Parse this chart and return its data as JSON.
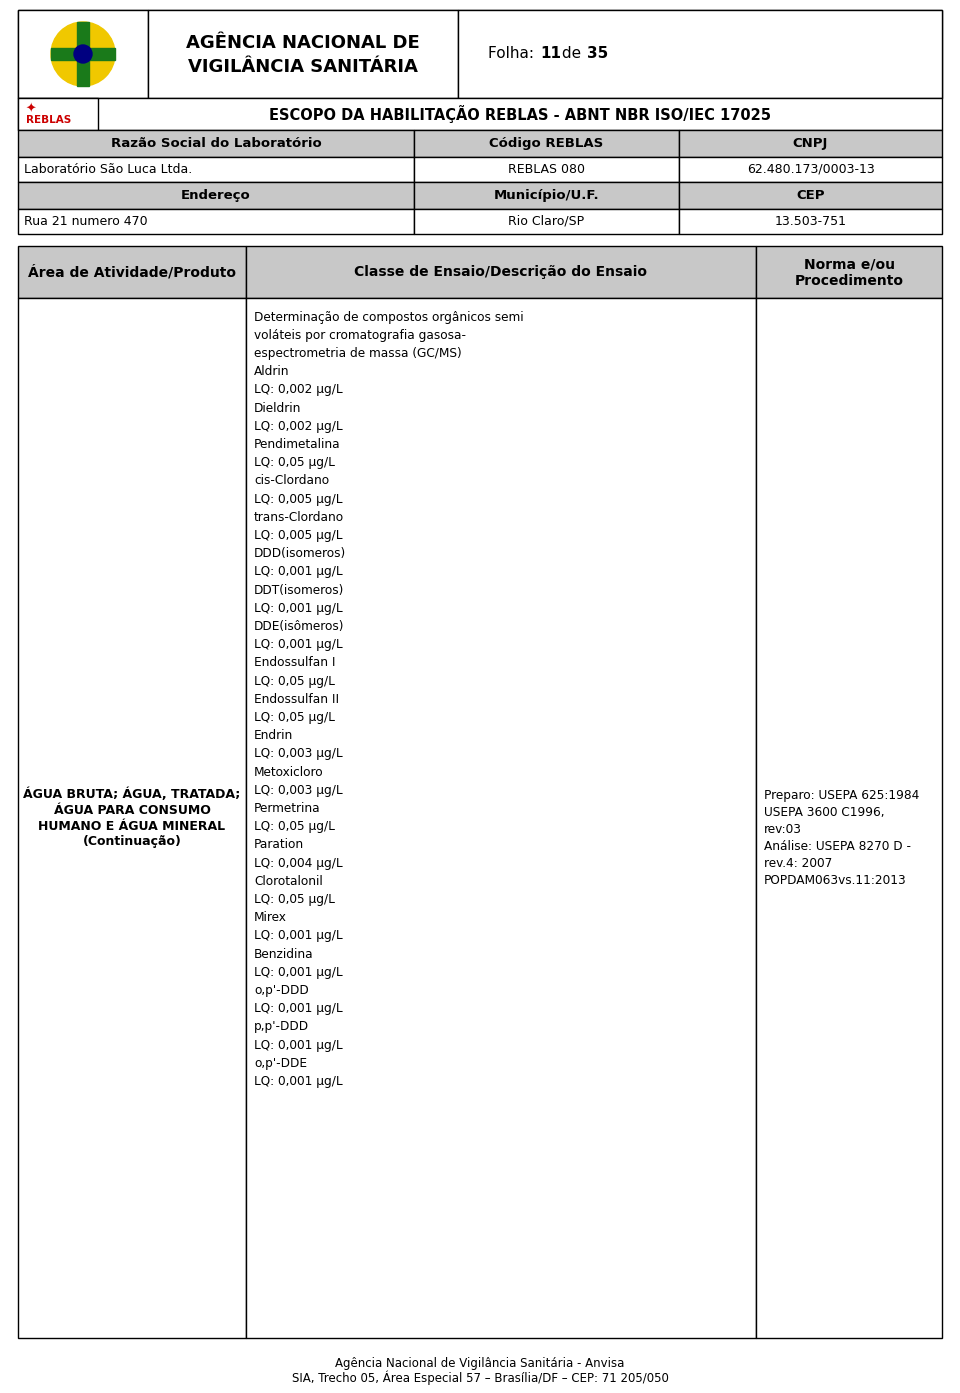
{
  "page_title_line1": "AGÊNCIA NACIONAL DE",
  "page_title_line2": "VIGILÂNCIA SANITÁRIA",
  "folha_prefix": "Folha: ",
  "folha_num": "11",
  "folha_mid": " de ",
  "folha_end": "35",
  "escopo_title": "ESCOPO DA HABILITAÇÃO REBLAS - ABNT NBR ISO/IEC 17025",
  "col1_header": "Razão Social do Laboratório",
  "col2_header": "Código REBLAS",
  "col3_header": "CNPJ",
  "lab_name": "Laboratório São Luca Ltda.",
  "reblas_code": "REBLAS 080",
  "cnpj": "62.480.173/0003-13",
  "endereco_header": "Endereço",
  "municipio_header": "Município/U.F.",
  "cep_header": "CEP",
  "endereco_val": "Rua 21 numero 470",
  "municipio_val": "Rio Claro/SP",
  "cep_val": "13.503-751",
  "table2_col1": "Área de Atividade/Produto",
  "table2_col2": "Classe de Ensaio/Descrição do Ensaio",
  "table2_col3a": "Norma e/ou",
  "table2_col3b": "Procedimento",
  "area_val_lines": [
    "ÁGUA BRUTA; ÁGUA, TRATADA;",
    "ÁGUA PARA CONSUMO",
    "HUMANO E ÁGUA MINERAL",
    "(Continuação)"
  ],
  "ensaio_lines": [
    "Determinação de compostos orgânicos semi",
    "voláteis por cromatografia gasosa-",
    "espectrometria de massa (GC/MS)",
    "Aldrin",
    "LQ: 0,002 µg/L",
    "Dieldrin",
    "LQ: 0,002 µg/L",
    "Pendimetalina",
    "LQ: 0,05 µg/L",
    "cis-Clordano",
    "LQ: 0,005 µg/L",
    "trans-Clordano",
    "LQ: 0,005 µg/L",
    "DDD(isomeros)",
    "LQ: 0,001 µg/L",
    "DDT(isomeros)",
    "LQ: 0,001 µg/L",
    "DDE(isômeros)",
    "LQ: 0,001 µg/L",
    "Endossulfan I",
    "LQ: 0,05 µg/L",
    "Endossulfan II",
    "LQ: 0,05 µg/L",
    "Endrin",
    "LQ: 0,003 µg/L",
    "Metoxicloro",
    "LQ: 0,003 µg/L",
    "Permetrina",
    "LQ: 0,05 µg/L",
    "Paration",
    "LQ: 0,004 µg/L",
    "Clorotalonil",
    "LQ: 0,05 µg/L",
    "Mirex",
    "LQ: 0,001 µg/L",
    "Benzidina",
    "LQ: 0,001 µg/L",
    "o,p'-DDD",
    "LQ: 0,001 µg/L",
    "p,p'-DDD",
    "LQ: 0,001 µg/L",
    "o,p'-DDE",
    "LQ: 0,001 µg/L"
  ],
  "norma_lines": [
    "Preparo: USEPA 625:1984",
    "USEPA 3600 C1996,",
    "rev:03",
    "Análise: USEPA 8270 D -",
    "rev.4: 2007",
    "POPDAM063vs.11:2013"
  ],
  "footer_line1": "Agência Nacional de Vigilância Sanitária - Anvisa",
  "footer_line2": "SIA, Trecho 05, Área Especial 57 – Brasília/DF – CEP: 71 205/050",
  "bg_color": "#ffffff",
  "gray_bg": "#c8c8c8",
  "border_color": "#000000",
  "reblas_red": "#cc0000",
  "logo_yellow": "#f0c800",
  "logo_green": "#1a7a1a",
  "logo_blue": "#000080"
}
